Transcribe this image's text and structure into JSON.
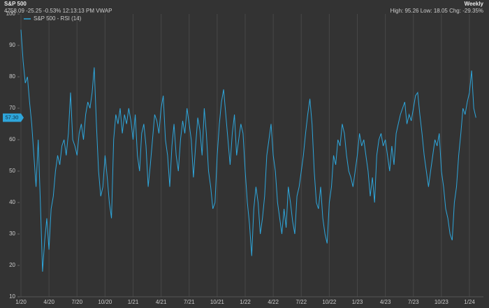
{
  "chart_data": {
    "type": "line",
    "title": "S&P 500",
    "subtitle": "4758.09 -25.25 -0.53% 12:13:13 PM VWAP",
    "interval": "Weekly",
    "stats": "High: 95.26 Low: 18.05 Chg: -29.35%",
    "badge": "57.30",
    "ylim": [
      10,
      100
    ],
    "yticks": [
      10,
      20,
      30,
      40,
      50,
      60,
      70,
      80,
      90,
      100
    ],
    "grid": true,
    "legend": "top-left",
    "categories": [
      "1/20",
      null,
      null,
      null,
      null,
      null,
      null,
      null,
      null,
      null,
      null,
      null,
      null,
      "4/20",
      null,
      null,
      null,
      null,
      null,
      null,
      null,
      null,
      null,
      null,
      null,
      null,
      "7/20",
      null,
      null,
      null,
      null,
      null,
      null,
      null,
      null,
      null,
      null,
      null,
      null,
      "10/20",
      null,
      null,
      null,
      null,
      null,
      null,
      null,
      null,
      null,
      null,
      null,
      null,
      "1/21",
      null,
      null,
      null,
      null,
      null,
      null,
      null,
      null,
      null,
      null,
      null,
      null,
      "4/21",
      null,
      null,
      null,
      null,
      null,
      null,
      null,
      null,
      null,
      null,
      null,
      null,
      "7/21",
      null,
      null,
      null,
      null,
      null,
      null,
      null,
      null,
      null,
      null,
      null,
      null,
      "10/21",
      null,
      null,
      null,
      null,
      null,
      null,
      null,
      null,
      null,
      null,
      null,
      null,
      "1/22",
      null,
      null,
      null,
      null,
      null,
      null,
      null,
      null,
      null,
      null,
      null,
      null,
      "4/22",
      null,
      null,
      null,
      null,
      null,
      null,
      null,
      null,
      null,
      null,
      null,
      null,
      "7/22",
      null,
      null,
      null,
      null,
      null,
      null,
      null,
      null,
      null,
      null,
      null,
      null,
      "10/22",
      null,
      null,
      null,
      null,
      null,
      null,
      null,
      null,
      null,
      null,
      null,
      null,
      "1/23",
      null,
      null,
      null,
      null,
      null,
      null,
      null,
      null,
      null,
      null,
      null,
      null,
      "4/23",
      null,
      null,
      null,
      null,
      null,
      null,
      null,
      null,
      null,
      null,
      null,
      null,
      "7/23",
      null,
      null,
      null,
      null,
      null,
      null,
      null,
      null,
      null,
      null,
      null,
      null,
      "10/23",
      null,
      null,
      null,
      null,
      null,
      null,
      null,
      null,
      null,
      null,
      null,
      null,
      "1/24",
      null,
      null,
      null
    ],
    "series": [
      {
        "name": "S&P 500 - RSI (14)",
        "color": "#2ea6db",
        "values": [
          95,
          85,
          78,
          80,
          72,
          65,
          55,
          45,
          60,
          40,
          18,
          28,
          35,
          25,
          38,
          42,
          50,
          55,
          52,
          58,
          60,
          55,
          62,
          75,
          60,
          58,
          55,
          62,
          65,
          60,
          68,
          72,
          70,
          75,
          83,
          65,
          50,
          42,
          45,
          55,
          48,
          40,
          35,
          60,
          68,
          65,
          70,
          62,
          68,
          65,
          70,
          66,
          60,
          68,
          55,
          50,
          62,
          65,
          58,
          45,
          52,
          60,
          68,
          66,
          62,
          70,
          74,
          60,
          55,
          45,
          58,
          65,
          55,
          50,
          60,
          66,
          62,
          70,
          65,
          60,
          48,
          58,
          67,
          63,
          55,
          70,
          62,
          50,
          45,
          38,
          40,
          55,
          65,
          72,
          76,
          68,
          60,
          52,
          62,
          68,
          55,
          60,
          65,
          62,
          50,
          40,
          33,
          23,
          38,
          45,
          40,
          30,
          35,
          42,
          55,
          60,
          65,
          55,
          50,
          40,
          35,
          30,
          38,
          32,
          45,
          40,
          34,
          30,
          42,
          45,
          50,
          55,
          62,
          68,
          73,
          65,
          50,
          40,
          38,
          45,
          35,
          30,
          27,
          40,
          45,
          55,
          52,
          60,
          58,
          65,
          62,
          55,
          50,
          48,
          45,
          50,
          55,
          62,
          58,
          60,
          55,
          50,
          42,
          48,
          40,
          55,
          60,
          62,
          58,
          60,
          55,
          50,
          58,
          52,
          62,
          65,
          68,
          70,
          72,
          65,
          68,
          66,
          70,
          74,
          75,
          68,
          62,
          55,
          50,
          45,
          50,
          55,
          60,
          58,
          62,
          50,
          45,
          38,
          35,
          30,
          28,
          40,
          45,
          55,
          62,
          70,
          68,
          72,
          75,
          82,
          70,
          67
        ]
      }
    ]
  }
}
